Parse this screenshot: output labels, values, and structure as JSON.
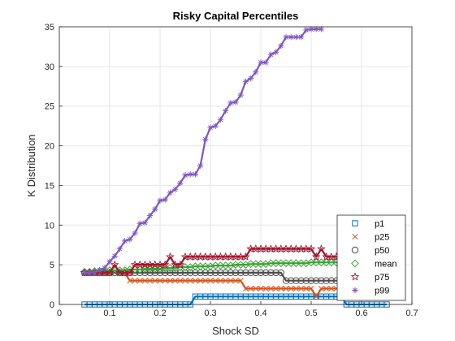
{
  "chart_data": {
    "type": "line",
    "title": "Risky Capital Percentiles",
    "xlabel": "Shock SD",
    "ylabel": "K Distribution",
    "xlim": [
      0,
      0.7
    ],
    "ylim": [
      0,
      35
    ],
    "xticks": [
      "0",
      "0.1",
      "0.2",
      "0.3",
      "0.4",
      "0.5",
      "0.6",
      "0.7"
    ],
    "yticks": [
      "0",
      "5",
      "10",
      "15",
      "20",
      "25",
      "30",
      "35"
    ],
    "grid": true,
    "legend_position": "bottom-right",
    "x_start": 0.05,
    "x_step": 0.01,
    "series": [
      {
        "name": "p1",
        "color": "#0072BD",
        "marker": "square",
        "values": [
          0,
          0,
          0,
          0,
          0,
          0,
          0,
          0,
          0,
          0,
          0,
          0,
          0,
          0,
          0,
          0,
          0,
          0,
          0,
          0,
          0,
          0,
          1,
          1,
          1,
          1,
          1,
          1,
          1,
          1,
          1,
          1,
          1,
          1,
          1,
          1,
          1,
          1,
          1,
          1,
          1,
          1,
          1,
          1,
          1,
          1,
          1,
          1,
          1,
          1,
          1,
          1,
          0,
          0,
          0,
          0,
          0,
          0,
          0,
          0,
          0
        ]
      },
      {
        "name": "p25",
        "color": "#D95319",
        "marker": "x",
        "values": [
          4,
          4,
          4,
          4,
          4,
          4,
          4,
          4,
          4,
          3,
          3,
          3,
          3,
          3,
          3,
          3,
          3,
          3,
          3,
          3,
          3,
          3,
          3,
          3,
          3,
          3,
          3,
          3,
          3,
          3,
          3,
          3,
          2,
          2,
          2,
          2,
          2,
          2,
          2,
          2,
          2,
          2,
          2,
          2,
          2,
          2,
          1,
          2,
          2,
          2,
          2,
          2,
          2,
          2,
          2,
          2,
          1,
          1,
          1,
          1,
          1
        ]
      },
      {
        "name": "p50",
        "color": "#4D4D4D",
        "marker": "circle",
        "values": [
          4,
          4,
          4,
          4,
          4,
          4,
          4,
          4,
          4,
          4,
          4,
          4,
          4,
          4,
          4,
          4,
          4,
          4,
          4,
          4,
          4,
          4,
          4,
          4,
          4,
          4,
          4,
          4,
          4,
          4,
          4,
          4,
          4,
          4,
          4,
          4,
          4,
          4,
          4,
          4,
          3,
          3,
          3,
          3,
          3,
          3,
          3,
          3,
          3,
          3,
          3,
          3,
          3,
          3,
          3,
          3,
          2,
          2,
          2,
          2,
          2
        ]
      },
      {
        "name": "mean",
        "color": "#3AA335",
        "marker": "diamond",
        "values": [
          4.1,
          4.1,
          4.2,
          4.2,
          4.2,
          4.3,
          4.3,
          4.3,
          4.3,
          4.4,
          4.4,
          4.4,
          4.5,
          4.5,
          4.5,
          4.5,
          4.6,
          4.6,
          4.6,
          4.7,
          4.7,
          4.7,
          4.8,
          4.8,
          4.8,
          4.8,
          4.9,
          4.9,
          4.9,
          4.9,
          5.0,
          5.0,
          5.0,
          5.1,
          5.1,
          5.1,
          5.1,
          5.2,
          5.2,
          5.2,
          5.2,
          5.2,
          5.2,
          5.2,
          5.2,
          5.3,
          5.3,
          5.3,
          5.3,
          5.3,
          5.3,
          5.3,
          5.3,
          5.3,
          5.3,
          5.3,
          5.3,
          5.3,
          5.3,
          5.3,
          5.3
        ]
      },
      {
        "name": "p75",
        "color": "#A2142F",
        "marker": "star",
        "values": [
          4,
          4,
          4,
          4,
          4,
          4,
          5,
          4,
          4,
          4,
          5,
          5,
          5,
          5,
          5,
          5,
          5,
          6,
          5,
          5,
          6,
          6,
          6,
          6,
          6,
          6,
          6,
          6,
          6,
          6,
          6,
          6,
          6,
          7,
          7,
          7,
          7,
          7,
          7,
          7,
          7,
          7,
          7,
          7,
          7,
          7,
          6,
          7,
          6,
          6,
          6,
          6,
          6,
          6,
          6,
          6,
          6,
          6,
          6,
          6,
          6
        ]
      },
      {
        "name": "p99",
        "color": "#7E57C2",
        "marker": "asterisk",
        "values": [
          4,
          4,
          4.1,
          4.3,
          4.6,
          5.4,
          6.1,
          7,
          8,
          8.2,
          9,
          10.2,
          10.3,
          11.2,
          12,
          13.1,
          13.2,
          14.1,
          14.5,
          15.3,
          16.3,
          16.4,
          16.4,
          17.5,
          20.8,
          22.3,
          22.5,
          23.3,
          24.4,
          25.4,
          25.5,
          26.4,
          28.1,
          28.5,
          29.3,
          30.5,
          30.5,
          31.5,
          31.8,
          32.6,
          33.7,
          33.7,
          33.7,
          33.7,
          34.6,
          34.7,
          34.7,
          34.7
        ]
      }
    ]
  }
}
